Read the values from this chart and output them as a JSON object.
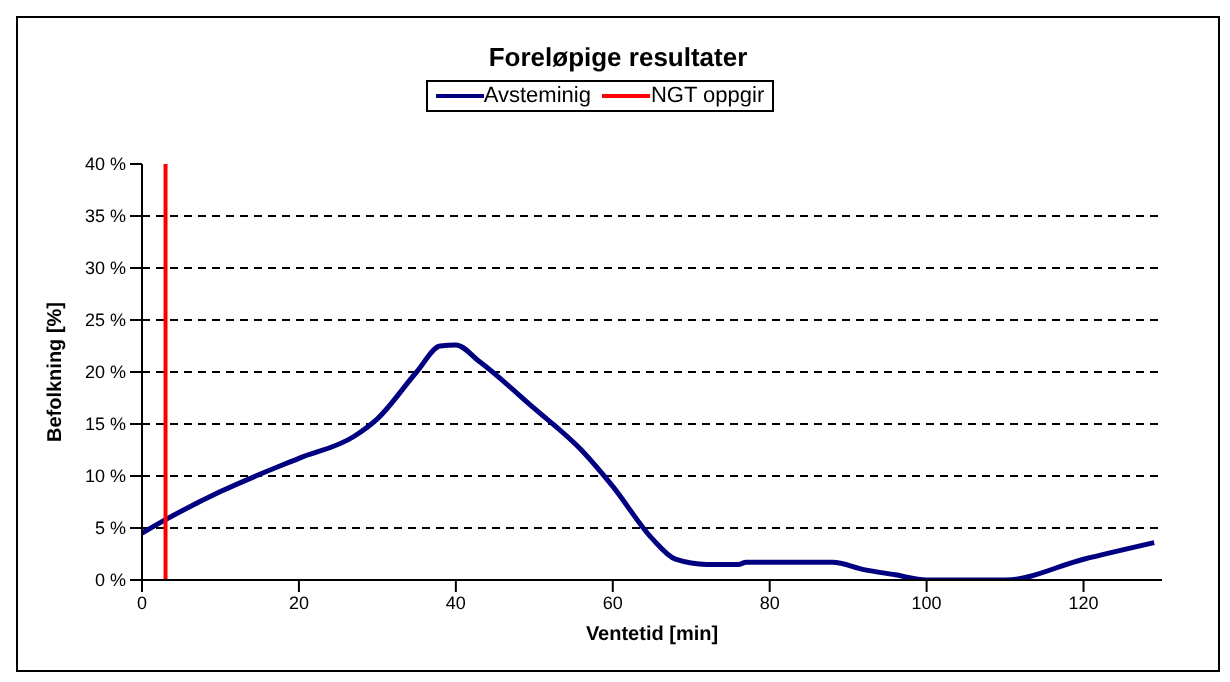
{
  "chart_data": {
    "type": "line",
    "title": "Foreløpige resultater",
    "xlabel": "Ventetid [min]",
    "ylabel": "Befolkning [%]",
    "xlim": [
      0,
      130
    ],
    "xticks": [
      0,
      20,
      40,
      60,
      80,
      100,
      120
    ],
    "ylim": [
      0,
      40
    ],
    "yticks": [
      {
        "value": 0,
        "label": "0 %"
      },
      {
        "value": 5,
        "label": "5 %"
      },
      {
        "value": 10,
        "label": "10 %"
      },
      {
        "value": 15,
        "label": "15 %"
      },
      {
        "value": 20,
        "label": "20 %"
      },
      {
        "value": 25,
        "label": "25 %"
      },
      {
        "value": 30,
        "label": "30 %"
      },
      {
        "value": 35,
        "label": "35 %"
      },
      {
        "value": 40,
        "label": "40 %"
      }
    ],
    "grid": "y",
    "legend": "top",
    "marker": "none",
    "line_style": "solid",
    "series": [
      {
        "name": "Avsteminig",
        "color": "#000080",
        "x": [
          0,
          3,
          10,
          20,
          27,
          30,
          35,
          38,
          40,
          43,
          50,
          56,
          60,
          65,
          68,
          72,
          76,
          77,
          88,
          92,
          96,
          100,
          105,
          110,
          120,
          129
        ],
        "values": [
          4.5,
          5.8,
          8.5,
          11.7,
          13.8,
          15.5,
          20,
          22.5,
          22.6,
          21,
          16.5,
          12.5,
          9,
          4,
          2,
          1.5,
          1.5,
          1.7,
          1.7,
          1,
          0.5,
          0,
          0,
          0,
          2,
          3.6
        ]
      },
      {
        "name": "NGT oppgir",
        "color": "#ff0000",
        "x": [
          3,
          3
        ],
        "values": [
          0,
          40
        ]
      }
    ]
  }
}
